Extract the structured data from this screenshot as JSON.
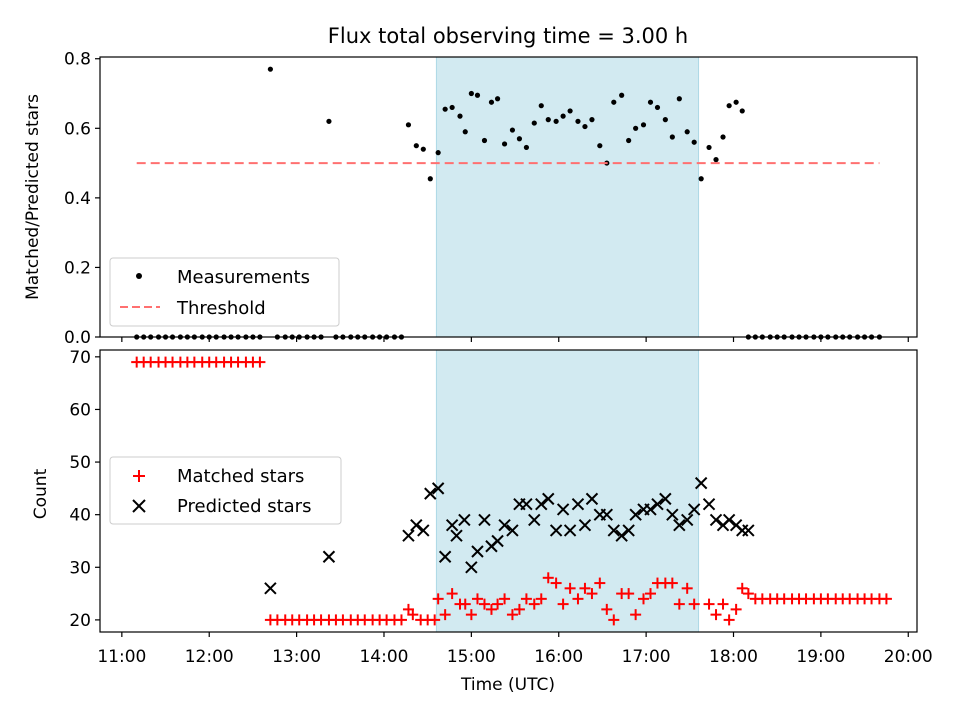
{
  "chart_data": {
    "title": "Flux total observing time = 3.00 h",
    "xlabel": "Time (UTC)",
    "x_unit": "hours UTC",
    "xlim": [
      10.75,
      20.1
    ],
    "xticks": [
      11,
      12,
      13,
      14,
      15,
      16,
      17,
      18,
      19,
      20
    ],
    "xtick_labels": [
      "11:00",
      "12:00",
      "13:00",
      "14:00",
      "15:00",
      "16:00",
      "17:00",
      "18:00",
      "19:00",
      "20:00"
    ],
    "shaded_interval": {
      "x_start": 14.6,
      "x_end": 17.6,
      "color": "#add8e6"
    },
    "panels": [
      {
        "type": "scatter",
        "ylabel": "Matched/Predicted stars",
        "ylim": [
          0,
          0.805
        ],
        "yticks": [
          0.0,
          0.2,
          0.4,
          0.6,
          0.8
        ],
        "ytick_labels": [
          "0.0",
          "0.2",
          "0.4",
          "0.6",
          "0.8"
        ],
        "legend_position": "lower-left",
        "series": [
          {
            "name": "Measurements",
            "marker": "dot",
            "color": "#000000",
            "x": [
              11.17,
              11.25,
              11.33,
              11.42,
              11.5,
              11.58,
              11.67,
              11.75,
              11.83,
              11.92,
              12.0,
              12.08,
              12.17,
              12.25,
              12.33,
              12.42,
              12.5,
              12.58,
              12.7,
              12.78,
              12.87,
              12.95,
              13.03,
              13.12,
              13.2,
              13.28,
              13.37,
              13.45,
              13.53,
              13.62,
              13.7,
              13.78,
              13.87,
              13.95,
              14.03,
              14.12,
              14.2,
              14.28,
              14.37,
              14.45,
              14.53,
              14.62,
              14.7,
              14.78,
              14.87,
              14.93,
              15.0,
              15.07,
              15.15,
              15.23,
              15.3,
              15.38,
              15.47,
              15.55,
              15.63,
              15.72,
              15.8,
              15.88,
              15.97,
              16.05,
              16.13,
              16.22,
              16.3,
              16.38,
              16.47,
              16.55,
              16.63,
              16.72,
              16.8,
              16.88,
              16.97,
              17.05,
              17.13,
              17.22,
              17.3,
              17.38,
              17.47,
              17.55,
              17.63,
              17.72,
              17.8,
              17.88,
              17.95,
              18.03,
              18.1,
              18.17,
              18.25,
              18.33,
              18.42,
              18.5,
              18.58,
              18.67,
              18.75,
              18.83,
              18.92,
              19.0,
              19.08,
              19.17,
              19.25,
              19.33,
              19.42,
              19.5,
              19.58,
              19.67
            ],
            "y": [
              0,
              0,
              0,
              0,
              0,
              0,
              0,
              0,
              0,
              0,
              0,
              0,
              0,
              0,
              0,
              0,
              0,
              0,
              0.77,
              0,
              0,
              0,
              0,
              0,
              0,
              0,
              0.62,
              0,
              0,
              0,
              0,
              0,
              0,
              0,
              0,
              0,
              0,
              0.61,
              0.55,
              0.54,
              0.455,
              0.53,
              0.655,
              0.66,
              0.635,
              0.59,
              0.7,
              0.695,
              0.565,
              0.675,
              0.685,
              0.555,
              0.595,
              0.57,
              0.545,
              0.615,
              0.665,
              0.625,
              0.62,
              0.635,
              0.65,
              0.62,
              0.605,
              0.625,
              0.55,
              0.5,
              0.675,
              0.695,
              0.565,
              0.6,
              0.61,
              0.675,
              0.66,
              0.625,
              0.575,
              0.685,
              0.59,
              0.56,
              0.455,
              0.545,
              0.51,
              0.575,
              0.665,
              0.675,
              0.65,
              0,
              0,
              0,
              0,
              0,
              0,
              0,
              0,
              0,
              0,
              0,
              0,
              0,
              0,
              0,
              0,
              0,
              0,
              0
            ]
          },
          {
            "name": "Threshold",
            "type": "line",
            "style": "dashed",
            "color": "#ff7070",
            "x": [
              11.17,
              19.67
            ],
            "y": [
              0.5,
              0.5
            ]
          }
        ]
      },
      {
        "type": "scatter",
        "ylabel": "Count",
        "ylim": [
          17.7,
          71.3
        ],
        "yticks": [
          20,
          30,
          40,
          50,
          60,
          70
        ],
        "ytick_labels": [
          "20",
          "30",
          "40",
          "50",
          "60",
          "70"
        ],
        "legend_position": "center-left",
        "series": [
          {
            "name": "Matched stars",
            "marker": "plus",
            "color": "#ff0000",
            "x": [
              11.17,
              11.25,
              11.33,
              11.42,
              11.5,
              11.58,
              11.67,
              11.75,
              11.83,
              11.92,
              12.0,
              12.08,
              12.17,
              12.25,
              12.33,
              12.42,
              12.5,
              12.58,
              12.7,
              12.78,
              12.87,
              12.95,
              13.03,
              13.12,
              13.2,
              13.28,
              13.37,
              13.45,
              13.53,
              13.62,
              13.7,
              13.78,
              13.87,
              13.95,
              14.03,
              14.12,
              14.2,
              14.28,
              14.33,
              14.42,
              14.5,
              14.58,
              14.62,
              14.7,
              14.78,
              14.87,
              14.93,
              15.0,
              15.07,
              15.15,
              15.23,
              15.3,
              15.38,
              15.47,
              15.55,
              15.63,
              15.72,
              15.8,
              15.88,
              15.97,
              16.05,
              16.13,
              16.22,
              16.3,
              16.38,
              16.47,
              16.55,
              16.63,
              16.72,
              16.8,
              16.88,
              16.97,
              17.05,
              17.13,
              17.22,
              17.3,
              17.38,
              17.47,
              17.55,
              17.72,
              17.8,
              17.88,
              17.95,
              18.03,
              18.1,
              18.17,
              18.25,
              18.33,
              18.42,
              18.5,
              18.58,
              18.67,
              18.75,
              18.83,
              18.92,
              19.0,
              19.08,
              19.17,
              19.25,
              19.33,
              19.42,
              19.5,
              19.58,
              19.67,
              19.75
            ],
            "y": [
              69,
              69,
              69,
              69,
              69,
              69,
              69,
              69,
              69,
              69,
              69,
              69,
              69,
              69,
              69,
              69,
              69,
              69,
              20,
              20,
              20,
              20,
              20,
              20,
              20,
              20,
              20,
              20,
              20,
              20,
              20,
              20,
              20,
              20,
              20,
              20,
              20,
              22,
              21,
              20,
              20,
              20,
              24,
              21,
              25,
              23,
              23,
              21,
              24,
              23,
              22,
              23,
              24,
              21,
              22,
              24,
              23,
              24,
              28,
              27,
              23,
              26,
              24,
              26,
              25,
              27,
              22,
              20,
              25,
              25,
              21,
              24,
              25,
              27,
              27,
              27,
              23,
              26,
              23,
              23,
              21,
              23,
              20,
              22,
              26,
              25,
              24,
              24,
              24,
              24,
              24,
              24,
              24,
              24,
              24,
              24,
              24,
              24,
              24,
              24,
              24,
              24,
              24,
              24,
              24
            ]
          },
          {
            "name": "Predicted stars",
            "marker": "x",
            "color": "#000000",
            "x": [
              12.7,
              13.37,
              14.28,
              14.37,
              14.45,
              14.53,
              14.62,
              14.7,
              14.78,
              14.83,
              14.92,
              15.0,
              15.07,
              15.15,
              15.23,
              15.3,
              15.38,
              15.47,
              15.55,
              15.63,
              15.72,
              15.8,
              15.88,
              15.97,
              16.05,
              16.13,
              16.22,
              16.3,
              16.38,
              16.47,
              16.55,
              16.63,
              16.72,
              16.8,
              16.88,
              16.97,
              17.05,
              17.13,
              17.22,
              17.3,
              17.38,
              17.47,
              17.55,
              17.63,
              17.72,
              17.8,
              17.88,
              17.95,
              18.03,
              18.1,
              18.17
            ],
            "y": [
              26,
              32,
              36,
              38,
              37,
              44,
              45,
              32,
              38,
              36,
              39,
              30,
              33,
              39,
              34,
              35,
              38,
              37,
              42,
              42,
              39,
              42,
              43,
              37,
              41,
              37,
              42,
              38,
              43,
              40,
              40,
              37,
              36,
              37,
              40,
              41,
              41,
              42,
              43,
              40,
              38,
              39,
              41,
              46,
              42,
              39,
              38,
              39,
              38,
              37,
              37
            ]
          }
        ]
      }
    ]
  }
}
